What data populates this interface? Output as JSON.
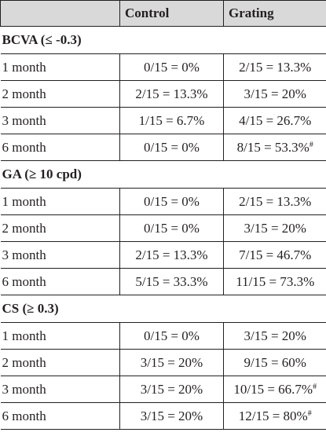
{
  "header": {
    "col1": "",
    "col2": "Control",
    "col3": "Grating"
  },
  "sections": [
    {
      "title": "BCVA (≤ -0.3)",
      "rows": [
        {
          "label": "1 month",
          "control": "0/15 = 0%",
          "grating": "2/15 = 13.3%",
          "grating_mark": ""
        },
        {
          "label": "2 month",
          "control": "2/15 = 13.3%",
          "grating": "3/15 = 20%",
          "grating_mark": ""
        },
        {
          "label": "3 month",
          "control": "1/15 = 6.7%",
          "grating": "4/15 = 26.7%",
          "grating_mark": ""
        },
        {
          "label": "6 month",
          "control": "0/15 = 0%",
          "grating": "8/15 = 53.3%",
          "grating_mark": "#"
        }
      ]
    },
    {
      "title": "GA (≥ 10 cpd)",
      "rows": [
        {
          "label": "1 month",
          "control": "0/15 = 0%",
          "grating": "2/15 = 13.3%",
          "grating_mark": ""
        },
        {
          "label": "2 month",
          "control": "0/15 = 0%",
          "grating": "3/15 = 20%",
          "grating_mark": ""
        },
        {
          "label": "3 month",
          "control": "2/15 = 13.3%",
          "grating": "7/15 = 46.7%",
          "grating_mark": ""
        },
        {
          "label": "6 month",
          "control": "5/15 = 33.3%",
          "grating": "11/15 = 73.3%",
          "grating_mark": ""
        }
      ]
    },
    {
      "title": "CS (≥ 0.3)",
      "rows": [
        {
          "label": "1 month",
          "control": "0/15 = 0%",
          "grating": "3/15 = 20%",
          "grating_mark": ""
        },
        {
          "label": "2 month",
          "control": "3/15 = 20%",
          "grating": "9/15 = 60%",
          "grating_mark": ""
        },
        {
          "label": "3 month",
          "control": "3/15 = 20%",
          "grating": "10/15 = 66.7%",
          "grating_mark": "#"
        },
        {
          "label": "6 month",
          "control": "3/15 = 20%",
          "grating": "12/15 = 80%",
          "grating_mark": "#"
        }
      ]
    }
  ]
}
